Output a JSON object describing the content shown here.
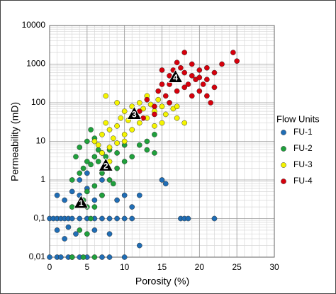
{
  "chart_data": {
    "type": "scatter",
    "x_label": "Porosity (%)",
    "y_label": "Permeability (mD)",
    "xlim": [
      0,
      30
    ],
    "xticks": [
      0,
      5,
      10,
      15,
      20,
      25,
      30
    ],
    "ylim": [
      0.01,
      10000
    ],
    "log_y": true,
    "yticks": [
      {
        "value": 0.01,
        "label": "0,01"
      },
      {
        "value": 0.1,
        "label": "0,1"
      },
      1,
      10,
      100,
      1000,
      10000
    ],
    "grid": true,
    "legend_title": "Flow Units",
    "legend_position": "right",
    "series": [
      {
        "name": "FU-1",
        "color": "#1f6db5",
        "x": [
          0,
          1,
          1.5,
          2.5,
          3,
          4,
          5,
          7,
          8,
          10,
          0,
          0.5,
          1,
          1.5,
          2,
          2.5,
          3,
          4,
          5,
          6,
          7,
          8,
          9,
          10,
          11,
          1,
          2,
          3,
          4,
          5,
          6,
          7,
          9,
          10,
          11,
          12,
          1,
          2,
          2.5,
          3.5,
          6,
          8,
          4,
          5,
          7,
          15,
          15.5,
          17.5,
          18,
          18.5,
          22,
          12
        ],
        "y": [
          0.01,
          0.01,
          0.01,
          0.01,
          0.01,
          0.01,
          0.01,
          0.01,
          0.01,
          0.01,
          0.1,
          0.1,
          0.1,
          0.1,
          0.1,
          0.1,
          0.1,
          0.1,
          0.1,
          0.1,
          0.1,
          0.1,
          0.1,
          0.1,
          0.1,
          0.4,
          0.3,
          0.5,
          0.4,
          0.6,
          0.3,
          0.4,
          0.3,
          0.4,
          0.2,
          0.4,
          0.05,
          0.03,
          0.06,
          0.04,
          0.05,
          0.04,
          1,
          1.5,
          1,
          1,
          0.8,
          0.1,
          0.1,
          0.1,
          0.1,
          0.02
        ]
      },
      {
        "name": "FU-2",
        "color": "#1fa03c",
        "x": [
          3,
          4.5,
          6,
          4,
          5,
          5.5,
          6,
          4.5,
          5,
          6,
          7,
          3,
          4,
          4.5,
          5,
          5.5,
          6,
          6.5,
          7,
          7.5,
          8,
          9,
          10,
          11,
          12,
          13,
          14,
          3.5,
          4,
          5,
          5.5,
          6,
          8,
          9,
          7,
          13,
          14,
          10,
          6.5,
          8.5,
          3,
          5
        ],
        "y": [
          0.01,
          0.01,
          0.01,
          0.05,
          0.04,
          0.1,
          0.2,
          0.3,
          0.5,
          0.7,
          0.4,
          1,
          1.5,
          2,
          3,
          2.5,
          4,
          3,
          5,
          4,
          6,
          5,
          3,
          4,
          8,
          6,
          5,
          4,
          7,
          10,
          20,
          12,
          1,
          2,
          1.5,
          10,
          15,
          8,
          6,
          0.8,
          0.2,
          0.2
        ]
      },
      {
        "name": "FU-3",
        "color": "#f4f400",
        "x": [
          6,
          6.5,
          7,
          7.5,
          8,
          8.5,
          9,
          9.5,
          10,
          10.5,
          11,
          11.5,
          12,
          12.5,
          13,
          13.5,
          14,
          14.5,
          15,
          15.5,
          16,
          16.5,
          17,
          18,
          7,
          8,
          9,
          10,
          7.5,
          9,
          11,
          12,
          13,
          15,
          17,
          14,
          10,
          8
        ],
        "y": [
          10,
          8,
          15,
          30,
          20,
          12,
          25,
          40,
          60,
          35,
          80,
          50,
          100,
          70,
          40,
          90,
          60,
          120,
          80,
          50,
          100,
          70,
          40,
          30,
          5,
          7,
          9,
          15,
          150,
          100,
          20,
          30,
          150,
          30,
          80,
          25,
          10,
          3
        ]
      },
      {
        "name": "FU-4",
        "color": "#d6000c",
        "x": [
          12,
          12.5,
          13,
          14,
          14.5,
          15,
          15.5,
          16,
          16.5,
          17,
          17.5,
          18,
          18.5,
          19,
          19.5,
          20,
          20.5,
          21,
          21.5,
          22,
          16,
          17,
          18,
          19,
          20,
          21,
          15,
          18,
          19,
          23,
          24.5,
          25,
          22,
          17,
          16,
          20,
          21,
          14
        ],
        "y": [
          60,
          40,
          120,
          80,
          200,
          300,
          150,
          500,
          700,
          400,
          800,
          600,
          300,
          500,
          400,
          200,
          300,
          150,
          100,
          250,
          100,
          200,
          250,
          150,
          700,
          800,
          700,
          2000,
          1000,
          1000,
          2000,
          1200,
          600,
          1100,
          300,
          450,
          400,
          50
        ]
      }
    ],
    "annotations": [
      {
        "label": "1",
        "x": 4.2,
        "y": 0.25
      },
      {
        "label": "2",
        "x": 7.5,
        "y": 2.3
      },
      {
        "label": "3",
        "x": 11.3,
        "y": 50
      },
      {
        "label": "4",
        "x": 16.8,
        "y": 450
      }
    ]
  }
}
